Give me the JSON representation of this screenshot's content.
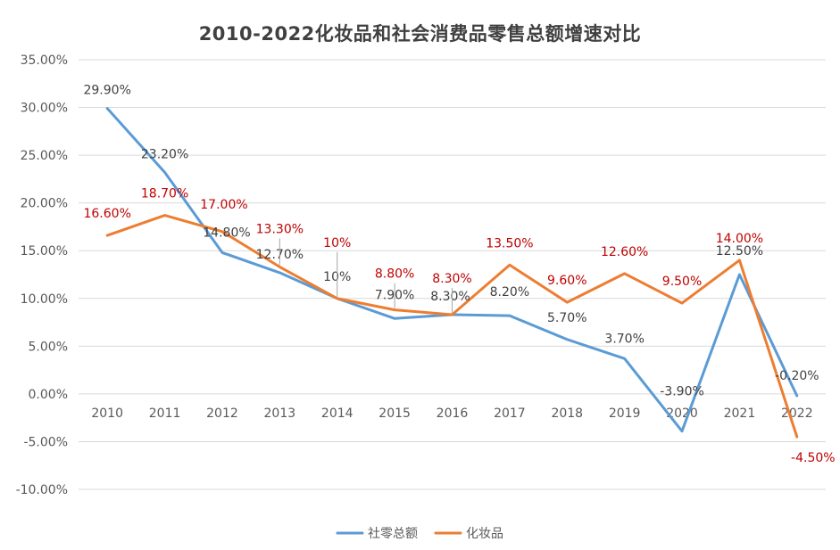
{
  "chart_data": {
    "type": "line",
    "title": "2010-2022化妆品和社会消费品零售总额增速对比",
    "xlabel": "",
    "ylabel": "",
    "categories": [
      "2010",
      "2011",
      "2012",
      "2013",
      "2014",
      "2015",
      "2016",
      "2017",
      "2018",
      "2019",
      "2020",
      "2021",
      "2022"
    ],
    "ylim": [
      -10,
      35
    ],
    "y_tick_step": 5,
    "y_tick_labels": [
      "-10.00%",
      "-5.00%",
      "0.00%",
      "5.00%",
      "10.00%",
      "15.00%",
      "20.00%",
      "25.00%",
      "30.00%",
      "35.00%"
    ],
    "grid": true,
    "legend_position": "bottom",
    "series": [
      {
        "name": "社零总额",
        "color": "#5B9BD5",
        "label_color": "#404040",
        "values": [
          29.9,
          23.2,
          14.8,
          12.7,
          10,
          7.9,
          8.3,
          8.2,
          5.7,
          3.7,
          -3.9,
          12.5,
          -0.2
        ],
        "labels": [
          "29.90%",
          "23.20%",
          "14.80%",
          "12.70%",
          "10%",
          "7.90%",
          "8.30%",
          "8.20%",
          "5.70%",
          "3.70%",
          "-3.90%",
          "12.50%",
          "-0.20%"
        ]
      },
      {
        "name": "化妆品",
        "color": "#ED7D31",
        "label_color": "#C00000",
        "values": [
          16.6,
          18.7,
          17.0,
          13.3,
          10,
          8.8,
          8.3,
          13.5,
          9.6,
          12.6,
          9.5,
          14.0,
          -4.5
        ],
        "labels": [
          "16.60%",
          "18.70%",
          "17.00%",
          "13.30%",
          "10%",
          "8.80%",
          "8.30%",
          "13.50%",
          "9.60%",
          "12.60%",
          "9.50%",
          "14.00%",
          "-4.50%"
        ]
      }
    ]
  }
}
